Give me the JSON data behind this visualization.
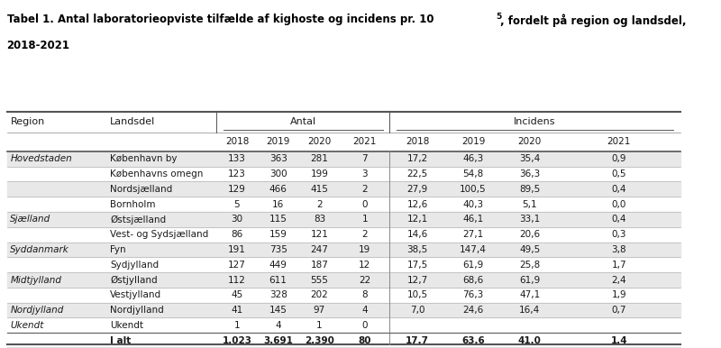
{
  "title_line1": "Tabel 1. Antal laboratorieopviste tilfælde af kighoste og incidens pr. 10",
  "title_superscript": "5",
  "title_line2": ", fordelt på region og landsdel,",
  "title_line3": "2018-2021",
  "col_groups": [
    "Antal",
    "Incidens"
  ],
  "years": [
    "2018",
    "2019",
    "2020",
    "2021"
  ],
  "header1": [
    "Region",
    "Landsdel"
  ],
  "rows": [
    {
      "region": "Hovedstaden",
      "landsdel": "København by",
      "antal": [
        "133",
        "363",
        "281",
        "7"
      ],
      "incidens": [
        "17,2",
        "46,3",
        "35,4",
        "0,9"
      ],
      "shaded": true
    },
    {
      "region": "",
      "landsdel": "Københavns omegn",
      "antal": [
        "123",
        "300",
        "199",
        "3"
      ],
      "incidens": [
        "22,5",
        "54,8",
        "36,3",
        "0,5"
      ],
      "shaded": false
    },
    {
      "region": "",
      "landsdel": "Nordsjælland",
      "antal": [
        "129",
        "466",
        "415",
        "2"
      ],
      "incidens": [
        "27,9",
        "100,5",
        "89,5",
        "0,4"
      ],
      "shaded": true
    },
    {
      "region": "",
      "landsdel": "Bornholm",
      "antal": [
        "5",
        "16",
        "2",
        "0"
      ],
      "incidens": [
        "12,6",
        "40,3",
        "5,1",
        "0,0"
      ],
      "shaded": false
    },
    {
      "region": "Sjælland",
      "landsdel": "Østsjælland",
      "antal": [
        "30",
        "115",
        "83",
        "1"
      ],
      "incidens": [
        "12,1",
        "46,1",
        "33,1",
        "0,4"
      ],
      "shaded": true
    },
    {
      "region": "",
      "landsdel": "Vest- og Sydsjælland",
      "antal": [
        "86",
        "159",
        "121",
        "2"
      ],
      "incidens": [
        "14,6",
        "27,1",
        "20,6",
        "0,3"
      ],
      "shaded": false
    },
    {
      "region": "Syddanmark",
      "landsdel": "Fyn",
      "antal": [
        "191",
        "735",
        "247",
        "19"
      ],
      "incidens": [
        "38,5",
        "147,4",
        "49,5",
        "3,8"
      ],
      "shaded": true
    },
    {
      "region": "",
      "landsdel": "Sydjylland",
      "antal": [
        "127",
        "449",
        "187",
        "12"
      ],
      "incidens": [
        "17,5",
        "61,9",
        "25,8",
        "1,7"
      ],
      "shaded": false
    },
    {
      "region": "Midtjylland",
      "landsdel": "Østjylland",
      "antal": [
        "112",
        "611",
        "555",
        "22"
      ],
      "incidens": [
        "12,7",
        "68,6",
        "61,9",
        "2,4"
      ],
      "shaded": true
    },
    {
      "region": "",
      "landsdel": "Vestjylland",
      "antal": [
        "45",
        "328",
        "202",
        "8"
      ],
      "incidens": [
        "10,5",
        "76,3",
        "47,1",
        "1,9"
      ],
      "shaded": false
    },
    {
      "region": "Nordjylland",
      "landsdel": "Nordjylland",
      "antal": [
        "41",
        "145",
        "97",
        "4"
      ],
      "incidens": [
        "7,0",
        "24,6",
        "16,4",
        "0,7"
      ],
      "shaded": true
    },
    {
      "region": "Ukendt",
      "landsdel": "Ukendt",
      "antal": [
        "1",
        "4",
        "1",
        "0"
      ],
      "incidens": [
        "",
        "",
        "",
        ""
      ],
      "shaded": false
    },
    {
      "region": "",
      "landsdel": "I alt",
      "antal": [
        "1.023",
        "3.691",
        "2.390",
        "80"
      ],
      "incidens": [
        "17,7",
        "63,6",
        "41,0",
        "1,4"
      ],
      "shaded": false,
      "bold": true
    }
  ],
  "bg_color": "#ffffff",
  "shade_color": "#e8e8e8",
  "header_shade": "#c8c8c8",
  "border_color": "#555555",
  "text_color": "#1a1a1a",
  "title_color": "#000000",
  "font_size": 7.5,
  "header_font_size": 7.5
}
